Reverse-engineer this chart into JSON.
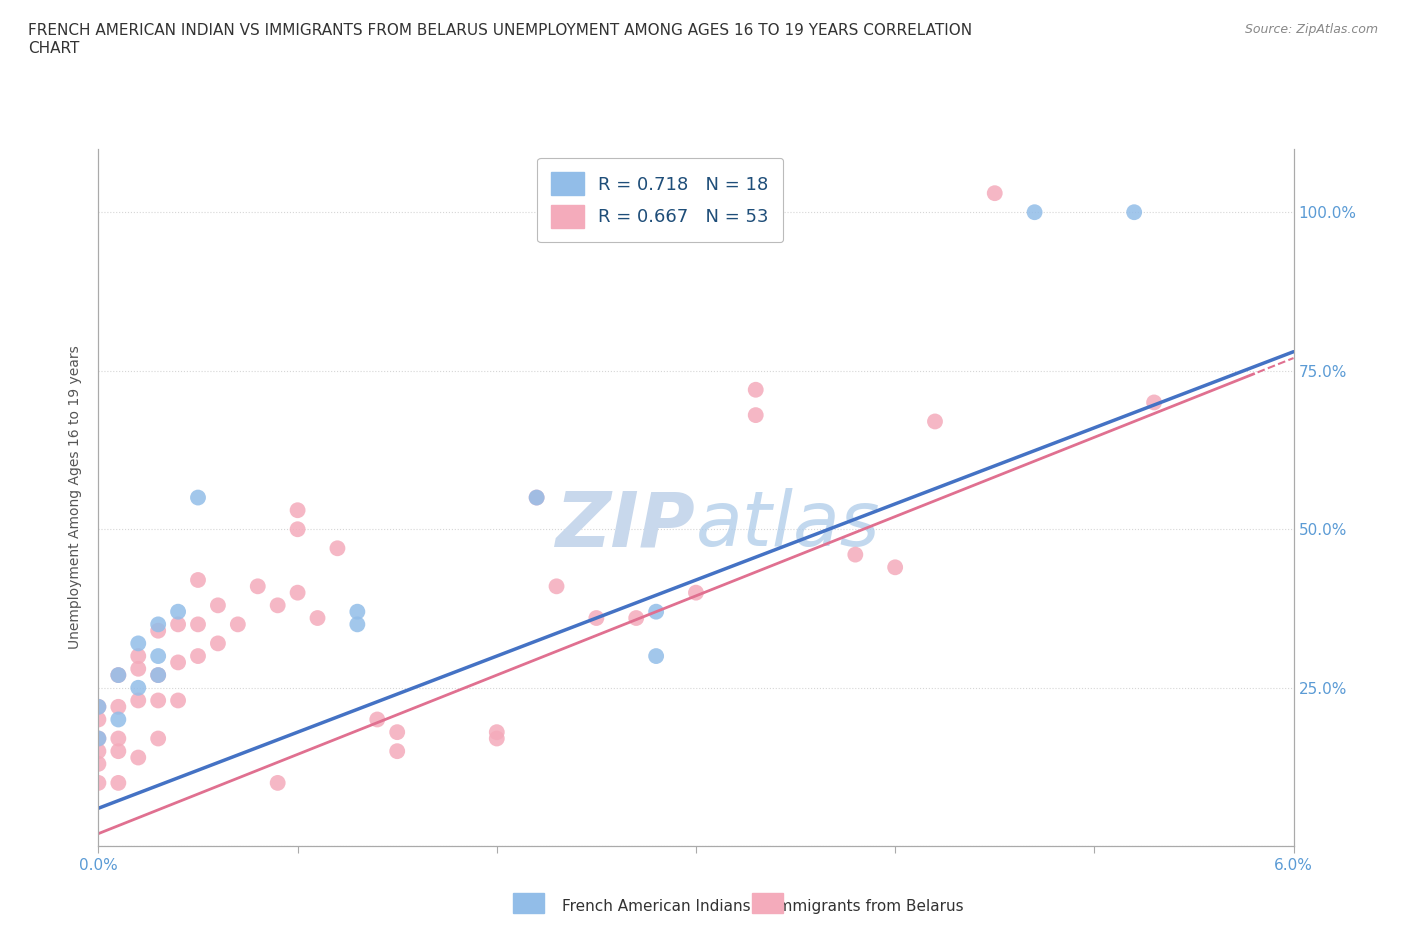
{
  "title": "FRENCH AMERICAN INDIAN VS IMMIGRANTS FROM BELARUS UNEMPLOYMENT AMONG AGES 16 TO 19 YEARS CORRELATION\nCHART",
  "source": "Source: ZipAtlas.com",
  "ylabel_label": "Unemployment Among Ages 16 to 19 years",
  "xlim": [
    0.0,
    0.06
  ],
  "ylim": [
    0.0,
    1.1
  ],
  "xticks": [
    0.0,
    0.01,
    0.02,
    0.03,
    0.04,
    0.05,
    0.06
  ],
  "xtick_labels": [
    "0.0%",
    "",
    "",
    "",
    "",
    "",
    "6.0%"
  ],
  "yticks": [
    0.0,
    0.25,
    0.5,
    0.75,
    1.0
  ],
  "ytick_labels": [
    "",
    "25.0%",
    "50.0%",
    "75.0%",
    "100.0%"
  ],
  "blue_color": "#92BDE8",
  "pink_color": "#F4ABBB",
  "blue_line_color": "#4472C4",
  "pink_line_color": "#E07090",
  "watermark_color": "#C8D8EC",
  "legend_R_blue": "0.718",
  "legend_N_blue": "18",
  "legend_R_pink": "0.667",
  "legend_N_pink": "53",
  "blue_line_intercept": 0.06,
  "blue_line_slope": 12.0,
  "pink_line_intercept": 0.02,
  "pink_line_slope": 12.5,
  "blue_scatter_x": [
    0.0,
    0.0,
    0.001,
    0.001,
    0.002,
    0.002,
    0.003,
    0.003,
    0.003,
    0.004,
    0.005,
    0.013,
    0.013,
    0.022,
    0.028,
    0.028,
    0.047,
    0.052
  ],
  "blue_scatter_y": [
    0.17,
    0.22,
    0.2,
    0.27,
    0.25,
    0.32,
    0.27,
    0.3,
    0.35,
    0.37,
    0.55,
    0.35,
    0.37,
    0.55,
    0.3,
    0.37,
    1.0,
    1.0
  ],
  "pink_scatter_x": [
    0.0,
    0.0,
    0.0,
    0.0,
    0.0,
    0.0,
    0.001,
    0.001,
    0.001,
    0.001,
    0.001,
    0.002,
    0.002,
    0.002,
    0.002,
    0.003,
    0.003,
    0.003,
    0.003,
    0.004,
    0.004,
    0.004,
    0.005,
    0.005,
    0.005,
    0.006,
    0.006,
    0.007,
    0.008,
    0.009,
    0.009,
    0.01,
    0.01,
    0.01,
    0.011,
    0.012,
    0.014,
    0.015,
    0.015,
    0.02,
    0.02,
    0.022,
    0.023,
    0.025,
    0.027,
    0.03,
    0.033,
    0.033,
    0.038,
    0.04,
    0.042,
    0.045,
    0.053
  ],
  "pink_scatter_y": [
    0.1,
    0.13,
    0.15,
    0.17,
    0.2,
    0.22,
    0.1,
    0.15,
    0.17,
    0.22,
    0.27,
    0.14,
    0.23,
    0.28,
    0.3,
    0.17,
    0.23,
    0.27,
    0.34,
    0.23,
    0.29,
    0.35,
    0.3,
    0.35,
    0.42,
    0.32,
    0.38,
    0.35,
    0.41,
    0.1,
    0.38,
    0.4,
    0.5,
    0.53,
    0.36,
    0.47,
    0.2,
    0.15,
    0.18,
    0.17,
    0.18,
    0.55,
    0.41,
    0.36,
    0.36,
    0.4,
    0.68,
    0.72,
    0.46,
    0.44,
    0.67,
    1.03,
    0.7
  ],
  "background_color": "#FFFFFF",
  "grid_color": "#CCCCCC"
}
